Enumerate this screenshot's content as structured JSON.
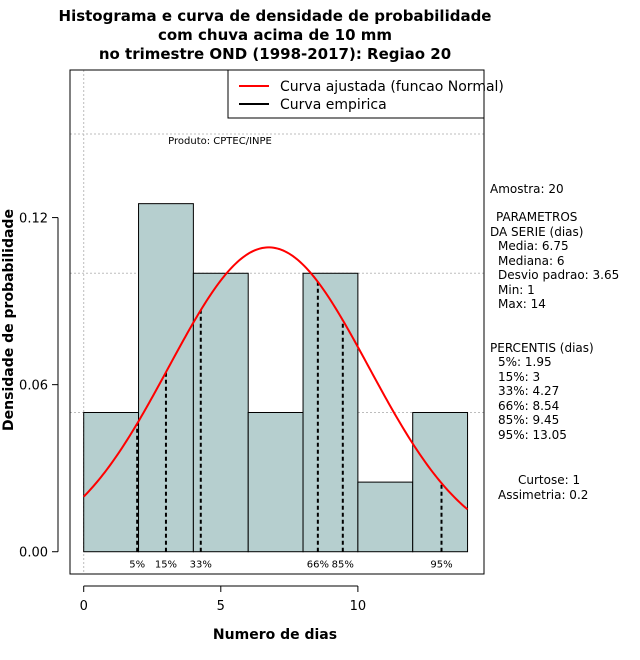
{
  "chart_data": {
    "type": "bar",
    "title": [
      "Histograma e curva de densidade de probabilidade",
      "com chuva acima de 10 mm",
      "no trimestre OND (1998-2017): Regiao 20"
    ],
    "xlabel": "Numero de dias",
    "ylabel": "Densidade de probabilidade",
    "xlim": [
      -0.5,
      14.6
    ],
    "ylim": [
      -0.008,
      0.173
    ],
    "x_ticks": [
      0,
      5,
      10
    ],
    "y_ticks": [
      0.0,
      0.06,
      0.12
    ],
    "y_tick_labels": [
      "0.00",
      "0.06",
      "0.12"
    ],
    "bins": [
      {
        "start": 0,
        "end": 2,
        "density": 0.05
      },
      {
        "start": 2,
        "end": 4,
        "density": 0.125
      },
      {
        "start": 4,
        "end": 6,
        "density": 0.1
      },
      {
        "start": 6,
        "end": 8,
        "density": 0.05
      },
      {
        "start": 8,
        "end": 10,
        "density": 0.1
      },
      {
        "start": 10,
        "end": 12,
        "density": 0.025
      },
      {
        "start": 12,
        "end": 14,
        "density": 0.05
      }
    ],
    "bar_color": "#b6cfcf",
    "fitted_curve": {
      "name": "Curva ajustada (funcao Normal)",
      "distribution": "normal",
      "mean": 6.75,
      "sd": 3.65,
      "color": "#ff0000",
      "x_range": [
        0,
        14
      ]
    },
    "empirical_curve": {
      "name": "Curva empirica",
      "color": "#000000"
    },
    "percentile_markers": [
      {
        "label": "5%",
        "x": 1.95
      },
      {
        "label": "15%",
        "x": 3
      },
      {
        "label": "33%",
        "x": 4.27
      },
      {
        "label": "66%",
        "x": 8.54
      },
      {
        "label": "85%",
        "x": 9.45
      },
      {
        "label": "95%",
        "x": 13.05
      }
    ],
    "legend": [
      "Curva ajustada (funcao Normal)",
      "Curva empirica"
    ],
    "legend_position": "top-right",
    "grid": true,
    "grid_y": [
      0.05,
      0.1,
      0.15
    ],
    "grid_x": [
      0
    ],
    "annotation": "Produto: CPTEC/INPE"
  },
  "side_panel": {
    "sample": "Amostra: 20",
    "params_header_1": "PARAMETROS",
    "params_header_2": "DA SERIE (dias)",
    "params": [
      "Media: 6.75",
      "Mediana: 6",
      "Desvio padrao: 3.65",
      "Min: 1",
      "Max: 14"
    ],
    "percentis_header": "PERCENTIS (dias)",
    "percentis": [
      "5%: 1.95",
      "15%: 3",
      "33%: 4.27",
      "66%: 8.54",
      "85%: 9.45",
      "95%: 13.05"
    ],
    "kurtosis": "Curtose: 1",
    "skewness": "Assimetria: 0.2"
  }
}
